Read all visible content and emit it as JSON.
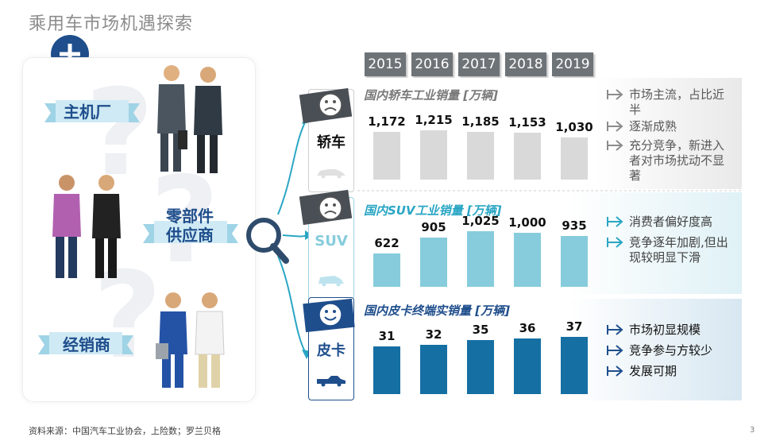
{
  "title": "乘用车市场机遇探索",
  "left": {
    "roles": [
      {
        "name": "主机厂"
      },
      {
        "name": "零部件\n供应商"
      },
      {
        "name": "经销商"
      }
    ]
  },
  "years": [
    "2015",
    "2016",
    "2017",
    "2018",
    "2019"
  ],
  "segments": [
    {
      "key": "sedan",
      "label": "轿车",
      "chart_title": "国内轿车工业销量 [万辆]",
      "sentiment": "sad",
      "bar_color": "#d9d9d9",
      "values": [
        1172,
        1215,
        1185,
        1153,
        1030
      ],
      "value_labels": [
        "1,172",
        "1,215",
        "1,185",
        "1,153",
        "1,030"
      ],
      "bullets": [
        "市场主流，占比近半",
        "逐渐成熟",
        "充分竞争，新进入者对市场扰动不显著"
      ]
    },
    {
      "key": "suv",
      "label": "SUV",
      "chart_title": "国内SUV工业销量 [万辆]",
      "sentiment": "sad",
      "bar_color": "#86ccdc",
      "values": [
        622,
        905,
        1025,
        1000,
        935
      ],
      "value_labels": [
        "622",
        "905",
        "1,025",
        "1,000",
        "935"
      ],
      "bullets": [
        "消费者偏好度高",
        "竞争逐年加剧,但出现较明显下滑"
      ]
    },
    {
      "key": "pickup",
      "label": "皮卡",
      "chart_title": "国内皮卡终端实销量 [万辆]",
      "sentiment": "happy",
      "bar_color": "#156fa3",
      "values": [
        31,
        32,
        35,
        36,
        37
      ],
      "value_labels": [
        "31",
        "32",
        "35",
        "36",
        "37"
      ],
      "bullets": [
        "市场初显规模",
        "竞争参与方较少",
        "发展可期"
      ]
    }
  ],
  "chart_data": [
    {
      "type": "bar",
      "title": "国内轿车工业销量 [万辆]",
      "categories": [
        "2015",
        "2016",
        "2017",
        "2018",
        "2019"
      ],
      "values": [
        1172,
        1215,
        1185,
        1153,
        1030
      ]
    },
    {
      "type": "bar",
      "title": "国内SUV工业销量 [万辆]",
      "categories": [
        "2015",
        "2016",
        "2017",
        "2018",
        "2019"
      ],
      "values": [
        622,
        905,
        1025,
        1000,
        935
      ]
    },
    {
      "type": "bar",
      "title": "国内皮卡终端实销量 [万辆]",
      "categories": [
        "2015",
        "2016",
        "2017",
        "2018",
        "2019"
      ],
      "values": [
        31,
        32,
        35,
        36,
        37
      ]
    }
  ],
  "colors": {
    "navy": "#1f4e8c",
    "teal": "#2aa6c4",
    "gray_bar": "#d9d9d9",
    "teal_bar": "#86ccdc",
    "blue_bar": "#156fa3"
  },
  "footer": "资料来源：中国汽车工业协会，上险数；罗兰贝格",
  "page_number": "3"
}
